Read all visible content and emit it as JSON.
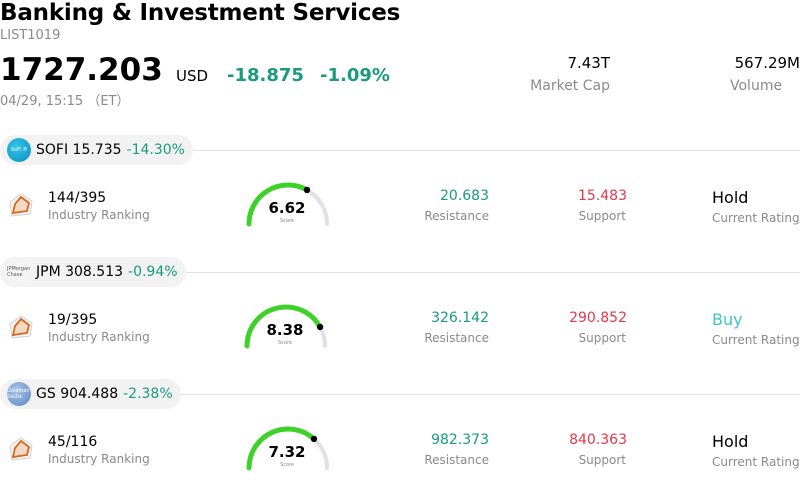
{
  "header": {
    "title": "Banking & Investment Services",
    "list_id": "LIST1019",
    "price": "1727.203",
    "currency": "USD",
    "change": "-18.875",
    "change_pct": "-1.09%",
    "timestamp": "04/29, 15:15 （ET）",
    "market_cap_value": "7.43T",
    "market_cap_label": "Market Cap",
    "volume_value": "567.29M",
    "volume_label": "Volume"
  },
  "colors": {
    "positive": "#1a9a7e",
    "negative": "#e5384a",
    "buy": "#3cc6c6",
    "gauge_green": "#3dd12a",
    "gauge_track": "#e0e0e8"
  },
  "stocks": [
    {
      "logo_text": "SoFi ®",
      "symbol": "SOFI",
      "price": "15.735",
      "change_pct": "-14.30%",
      "ranking": "144/395",
      "ranking_label": "Industry Ranking",
      "score": "6.62",
      "score_fraction": 0.662,
      "score_label": "Score",
      "resistance": "20.683",
      "resistance_label": "Resistance",
      "support": "15.483",
      "support_label": "Support",
      "rating": "Hold",
      "rating_label": "Current Rating"
    },
    {
      "logo_text": "JPMorgan Chase",
      "symbol": "JPM",
      "price": "308.513",
      "change_pct": "-0.94%",
      "ranking": "19/395",
      "ranking_label": "Industry Ranking",
      "score": "8.38",
      "score_fraction": 0.838,
      "score_label": "Score",
      "resistance": "326.142",
      "resistance_label": "Resistance",
      "support": "290.852",
      "support_label": "Support",
      "rating": "Buy",
      "rating_label": "Current Rating"
    },
    {
      "logo_text": "Goldman Sachs",
      "symbol": "GS",
      "price": "904.488",
      "change_pct": "-2.38%",
      "ranking": "45/116",
      "ranking_label": "Industry Ranking",
      "score": "7.32",
      "score_fraction": 0.732,
      "score_label": "Score",
      "resistance": "982.373",
      "resistance_label": "Resistance",
      "support": "840.363",
      "support_label": "Support",
      "rating": "Hold",
      "rating_label": "Current Rating"
    }
  ]
}
